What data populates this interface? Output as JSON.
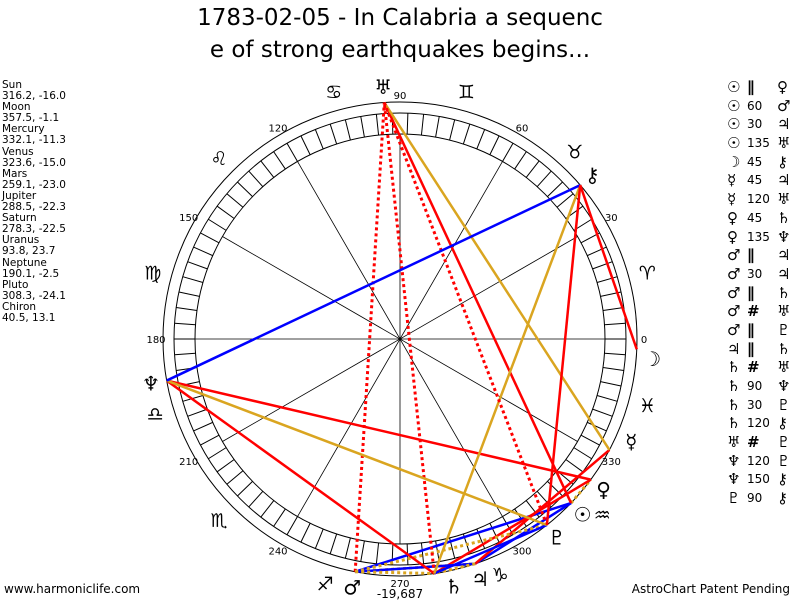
{
  "title": {
    "line1": "1783-02-05 - In Calabria a sequenc",
    "line2": "e of strong earthquakes begins..."
  },
  "planets": [
    {
      "key": "sun",
      "name": "Sun",
      "glyph": "☉",
      "coords": "316.2, -16.0",
      "lon": 316.2
    },
    {
      "key": "moon",
      "name": "Moon",
      "glyph": "☽",
      "coords": "357.5, -1.1",
      "lon": 357.5
    },
    {
      "key": "mercury",
      "name": "Mercury",
      "glyph": "☿",
      "coords": "332.1, -11.3",
      "lon": 332.1
    },
    {
      "key": "venus",
      "name": "Venus",
      "glyph": "♀",
      "coords": "323.6, -15.0",
      "lon": 323.6
    },
    {
      "key": "mars",
      "name": "Mars",
      "glyph": "♂",
      "coords": "259.1, -23.0",
      "lon": 259.1
    },
    {
      "key": "jupiter",
      "name": "Jupiter",
      "glyph": "♃",
      "coords": "288.5, -22.3",
      "lon": 288.5
    },
    {
      "key": "saturn",
      "name": "Saturn",
      "glyph": "♄",
      "coords": "278.3, -22.5",
      "lon": 278.3
    },
    {
      "key": "uranus",
      "name": "Uranus",
      "glyph": "♅",
      "coords": "93.8, 23.7",
      "lon": 93.8
    },
    {
      "key": "neptune",
      "name": "Neptune",
      "glyph": "♆",
      "coords": "190.1, -2.5",
      "lon": 190.1
    },
    {
      "key": "pluto",
      "name": "Pluto",
      "glyph": "♇",
      "coords": "308.3, -24.1",
      "lon": 308.3
    },
    {
      "key": "chiron",
      "name": "Chiron",
      "glyph": "⚷",
      "coords": "40.5, 13.1",
      "lon": 40.5
    }
  ],
  "aspects": [
    {
      "p1": "sun",
      "a": "∥",
      "p2": "venus"
    },
    {
      "p1": "sun",
      "a": "60",
      "p2": "mars"
    },
    {
      "p1": "sun",
      "a": "30",
      "p2": "jupiter"
    },
    {
      "p1": "sun",
      "a": "135",
      "p2": "uranus"
    },
    {
      "p1": "moon",
      "a": "45",
      "p2": "chiron"
    },
    {
      "p1": "mercury",
      "a": "45",
      "p2": "jupiter"
    },
    {
      "p1": "mercury",
      "a": "120",
      "p2": "uranus"
    },
    {
      "p1": "venus",
      "a": "45",
      "p2": "saturn"
    },
    {
      "p1": "venus",
      "a": "135",
      "p2": "neptune"
    },
    {
      "p1": "mars",
      "a": "∥",
      "p2": "jupiter"
    },
    {
      "p1": "mars",
      "a": "30",
      "p2": "jupiter"
    },
    {
      "p1": "mars",
      "a": "∥",
      "p2": "saturn"
    },
    {
      "p1": "mars",
      "a": "#",
      "p2": "uranus"
    },
    {
      "p1": "mars",
      "a": "∥",
      "p2": "pluto"
    },
    {
      "p1": "jupiter",
      "a": "∥",
      "p2": "saturn"
    },
    {
      "p1": "saturn",
      "a": "#",
      "p2": "uranus"
    },
    {
      "p1": "saturn",
      "a": "90",
      "p2": "neptune"
    },
    {
      "p1": "saturn",
      "a": "30",
      "p2": "pluto"
    },
    {
      "p1": "saturn",
      "a": "120",
      "p2": "chiron"
    },
    {
      "p1": "uranus",
      "a": "#",
      "p2": "pluto"
    },
    {
      "p1": "neptune",
      "a": "120",
      "p2": "pluto"
    },
    {
      "p1": "neptune",
      "a": "150",
      "p2": "chiron"
    },
    {
      "p1": "pluto",
      "a": "90",
      "p2": "chiron"
    }
  ],
  "zodiac": [
    "♈",
    "♉",
    "♊",
    "♋",
    "♌",
    "♍",
    "♎",
    "♏",
    "♐",
    "♑",
    "♒",
    "♓"
  ],
  "degree_labels": [
    "0",
    "30",
    "60",
    "90",
    "120",
    "150",
    "180",
    "210",
    "240",
    "270",
    "300",
    "330"
  ],
  "bottom_value": "-19,687",
  "colors": {
    "red": "#ff0000",
    "blue": "#0000ff",
    "orange": "#daa520"
  },
  "footer": {
    "left": "www.harmoniclife.com",
    "right": "AstroChart Patent Pending"
  }
}
